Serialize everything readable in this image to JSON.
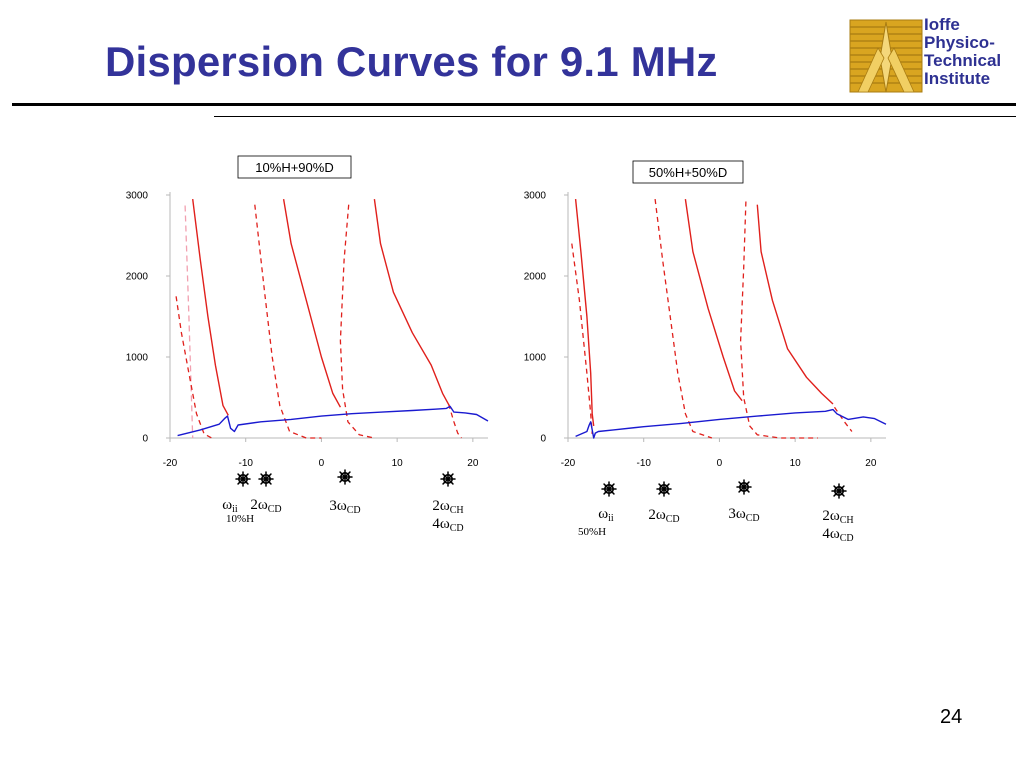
{
  "slide": {
    "title": "Dispersion Curves for 9.1 MHz",
    "page_number": "24"
  },
  "logo": {
    "lines": [
      "Ioffe",
      "Physico-",
      "Technical",
      "Institute"
    ],
    "colors": {
      "text": "#2e3192",
      "gold": "#d9a520",
      "gold_dark": "#a97c12"
    }
  },
  "colors": {
    "title": "#33339a",
    "red_curve": "#e0201c",
    "pink_curve": "#f2a0b0",
    "blue_curve": "#1a1ad0"
  },
  "chart_data": [
    {
      "type": "line",
      "title": "10%H+90%D",
      "xlim": [
        -20,
        22
      ],
      "ylim": [
        0,
        3000
      ],
      "x_ticks": [
        "-20",
        "-10",
        "0",
        "10",
        "20"
      ],
      "y_ticks": [
        "0",
        "1000",
        "2000",
        "3000"
      ],
      "grid": false,
      "series": [
        {
          "style": "pink-dashed",
          "points": [
            [
              -18.0,
              2870
            ],
            [
              -17.5,
              1500
            ],
            [
              -17.0,
              0
            ]
          ]
        },
        {
          "style": "red-dashed",
          "points": [
            [
              -19.2,
              1750
            ],
            [
              -18.5,
              1300
            ],
            [
              -17.5,
              800
            ],
            [
              -16.5,
              300
            ],
            [
              -15.5,
              50
            ],
            [
              -14.5,
              0
            ]
          ]
        },
        {
          "style": "red-solid",
          "points": [
            [
              -17.0,
              2950
            ],
            [
              -16.0,
              2200
            ],
            [
              -15.0,
              1500
            ],
            [
              -14.0,
              900
            ],
            [
              -13.0,
              400
            ],
            [
              -12.3,
              280
            ]
          ]
        },
        {
          "style": "red-dashed",
          "points": [
            [
              -8.8,
              2880
            ],
            [
              -7.5,
              1800
            ],
            [
              -6.5,
              1000
            ],
            [
              -5.5,
              400
            ],
            [
              -4.2,
              80
            ],
            [
              -2.0,
              0
            ],
            [
              0.0,
              0
            ]
          ]
        },
        {
          "style": "red-solid",
          "points": [
            [
              -5.0,
              2950
            ],
            [
              -4.0,
              2400
            ],
            [
              -2.0,
              1700
            ],
            [
              0.0,
              1000
            ],
            [
              1.5,
              550
            ],
            [
              2.5,
              380
            ]
          ]
        },
        {
          "style": "red-dashed",
          "points": [
            [
              3.6,
              2880
            ],
            [
              3.0,
              2200
            ],
            [
              2.5,
              1200
            ],
            [
              2.8,
              600
            ],
            [
              3.5,
              200
            ],
            [
              5.0,
              40
            ],
            [
              7.0,
              0
            ]
          ]
        },
        {
          "style": "red-solid",
          "points": [
            [
              7.0,
              2950
            ],
            [
              7.8,
              2400
            ],
            [
              9.5,
              1800
            ],
            [
              12.0,
              1300
            ],
            [
              14.5,
              900
            ],
            [
              16.0,
              550
            ],
            [
              17.0,
              380
            ]
          ]
        },
        {
          "style": "red-dashed",
          "points": [
            [
              16.8,
              420
            ],
            [
              17.5,
              200
            ],
            [
              18.0,
              60
            ],
            [
              18.5,
              0
            ]
          ]
        },
        {
          "style": "blue-solid",
          "points": [
            [
              -19.0,
              30
            ],
            [
              -16.0,
              100
            ],
            [
              -13.5,
              170
            ],
            [
              -12.8,
              240
            ],
            [
              -12.4,
              270
            ],
            [
              -12.0,
              120
            ],
            [
              -11.5,
              80
            ],
            [
              -11.0,
              160
            ],
            [
              -8.0,
              200
            ],
            [
              -4.0,
              230
            ],
            [
              0.0,
              270
            ],
            [
              4.0,
              300
            ],
            [
              8.0,
              320
            ],
            [
              12.0,
              340
            ],
            [
              15.0,
              355
            ],
            [
              16.5,
              365
            ],
            [
              17.0,
              390
            ],
            [
              17.5,
              320
            ],
            [
              19.0,
              310
            ],
            [
              20.5,
              290
            ],
            [
              22.0,
              210
            ]
          ]
        }
      ],
      "annotations": [
        {
          "symbols": 2,
          "label_parts": [
            [
              "ω",
              "ii"
            ],
            [
              "2ω",
              "CD"
            ]
          ],
          "sublabel": "10%H"
        },
        {
          "symbols": 1,
          "label_parts": [
            [
              "3ω",
              "CD"
            ]
          ],
          "sublabel": ""
        },
        {
          "symbols": 1,
          "label_parts": [
            [
              "2ω",
              "CH"
            ],
            [
              "4ω",
              "CD"
            ]
          ],
          "sublabel": ""
        }
      ]
    },
    {
      "type": "line",
      "title": "50%H+50%D",
      "xlim": [
        -20,
        22
      ],
      "ylim": [
        0,
        3000
      ],
      "x_ticks": [
        "-20",
        "-10",
        "0",
        "10",
        "20"
      ],
      "y_ticks": [
        "0",
        "1000",
        "2000",
        "3000"
      ],
      "grid": false,
      "series": [
        {
          "style": "red-dashed",
          "points": [
            [
              -19.5,
              2400
            ],
            [
              -18.5,
              1700
            ],
            [
              -17.5,
              800
            ],
            [
              -17.0,
              300
            ],
            [
              -16.8,
              50
            ]
          ]
        },
        {
          "style": "red-solid",
          "points": [
            [
              -19.0,
              2950
            ],
            [
              -18.3,
              2300
            ],
            [
              -17.5,
              1500
            ],
            [
              -17.0,
              800
            ],
            [
              -16.8,
              300
            ],
            [
              -16.6,
              150
            ]
          ]
        },
        {
          "style": "red-dashed",
          "points": [
            [
              -8.5,
              2950
            ],
            [
              -7.5,
              2200
            ],
            [
              -6.5,
              1500
            ],
            [
              -5.5,
              800
            ],
            [
              -4.5,
              300
            ],
            [
              -3.5,
              80
            ],
            [
              -1.0,
              0
            ]
          ]
        },
        {
          "style": "red-solid",
          "points": [
            [
              -4.5,
              2950
            ],
            [
              -3.5,
              2300
            ],
            [
              -1.5,
              1600
            ],
            [
              0.5,
              1000
            ],
            [
              2.0,
              580
            ],
            [
              3.0,
              460
            ]
          ]
        },
        {
          "style": "red-dashed",
          "points": [
            [
              3.5,
              2920
            ],
            [
              3.2,
              2100
            ],
            [
              2.8,
              1200
            ],
            [
              3.2,
              500
            ],
            [
              4.0,
              150
            ],
            [
              5.0,
              40
            ],
            [
              8.0,
              0
            ],
            [
              13.0,
              0
            ]
          ]
        },
        {
          "style": "red-solid",
          "points": [
            [
              5.0,
              2880
            ],
            [
              5.5,
              2300
            ],
            [
              7.0,
              1700
            ],
            [
              9.0,
              1100
            ],
            [
              11.5,
              750
            ],
            [
              13.5,
              550
            ],
            [
              15.0,
              420
            ]
          ]
        },
        {
          "style": "red-dashed",
          "points": [
            [
              15.2,
              380
            ],
            [
              16.5,
              200
            ],
            [
              17.5,
              80
            ]
          ]
        },
        {
          "style": "blue-solid",
          "points": [
            [
              -19.0,
              20
            ],
            [
              -17.5,
              80
            ],
            [
              -17.2,
              160
            ],
            [
              -17.0,
              200
            ],
            [
              -16.8,
              100
            ],
            [
              -16.6,
              0
            ],
            [
              -16.4,
              60
            ],
            [
              -16.0,
              80
            ],
            [
              -14.0,
              100
            ],
            [
              -10.0,
              140
            ],
            [
              -5.0,
              180
            ],
            [
              0.0,
              230
            ],
            [
              5.0,
              270
            ],
            [
              10.0,
              310
            ],
            [
              14.0,
              330
            ],
            [
              15.0,
              350
            ],
            [
              15.5,
              300
            ],
            [
              17.0,
              230
            ],
            [
              19.0,
              260
            ],
            [
              20.5,
              240
            ],
            [
              22.0,
              170
            ]
          ]
        }
      ],
      "annotations": [
        {
          "symbols": 1,
          "label_parts": [
            [
              "ω",
              "ii"
            ]
          ],
          "sublabel": "50%H"
        },
        {
          "symbols": 1,
          "label_parts": [
            [
              "2ω",
              "CD"
            ]
          ],
          "sublabel": ""
        },
        {
          "symbols": 1,
          "label_parts": [
            [
              "3ω",
              "CD"
            ]
          ],
          "sublabel": ""
        },
        {
          "symbols": 1,
          "label_parts": [
            [
              "2ω",
              "CH"
            ],
            [
              "4ω",
              "CD"
            ]
          ],
          "sublabel": ""
        }
      ]
    }
  ]
}
